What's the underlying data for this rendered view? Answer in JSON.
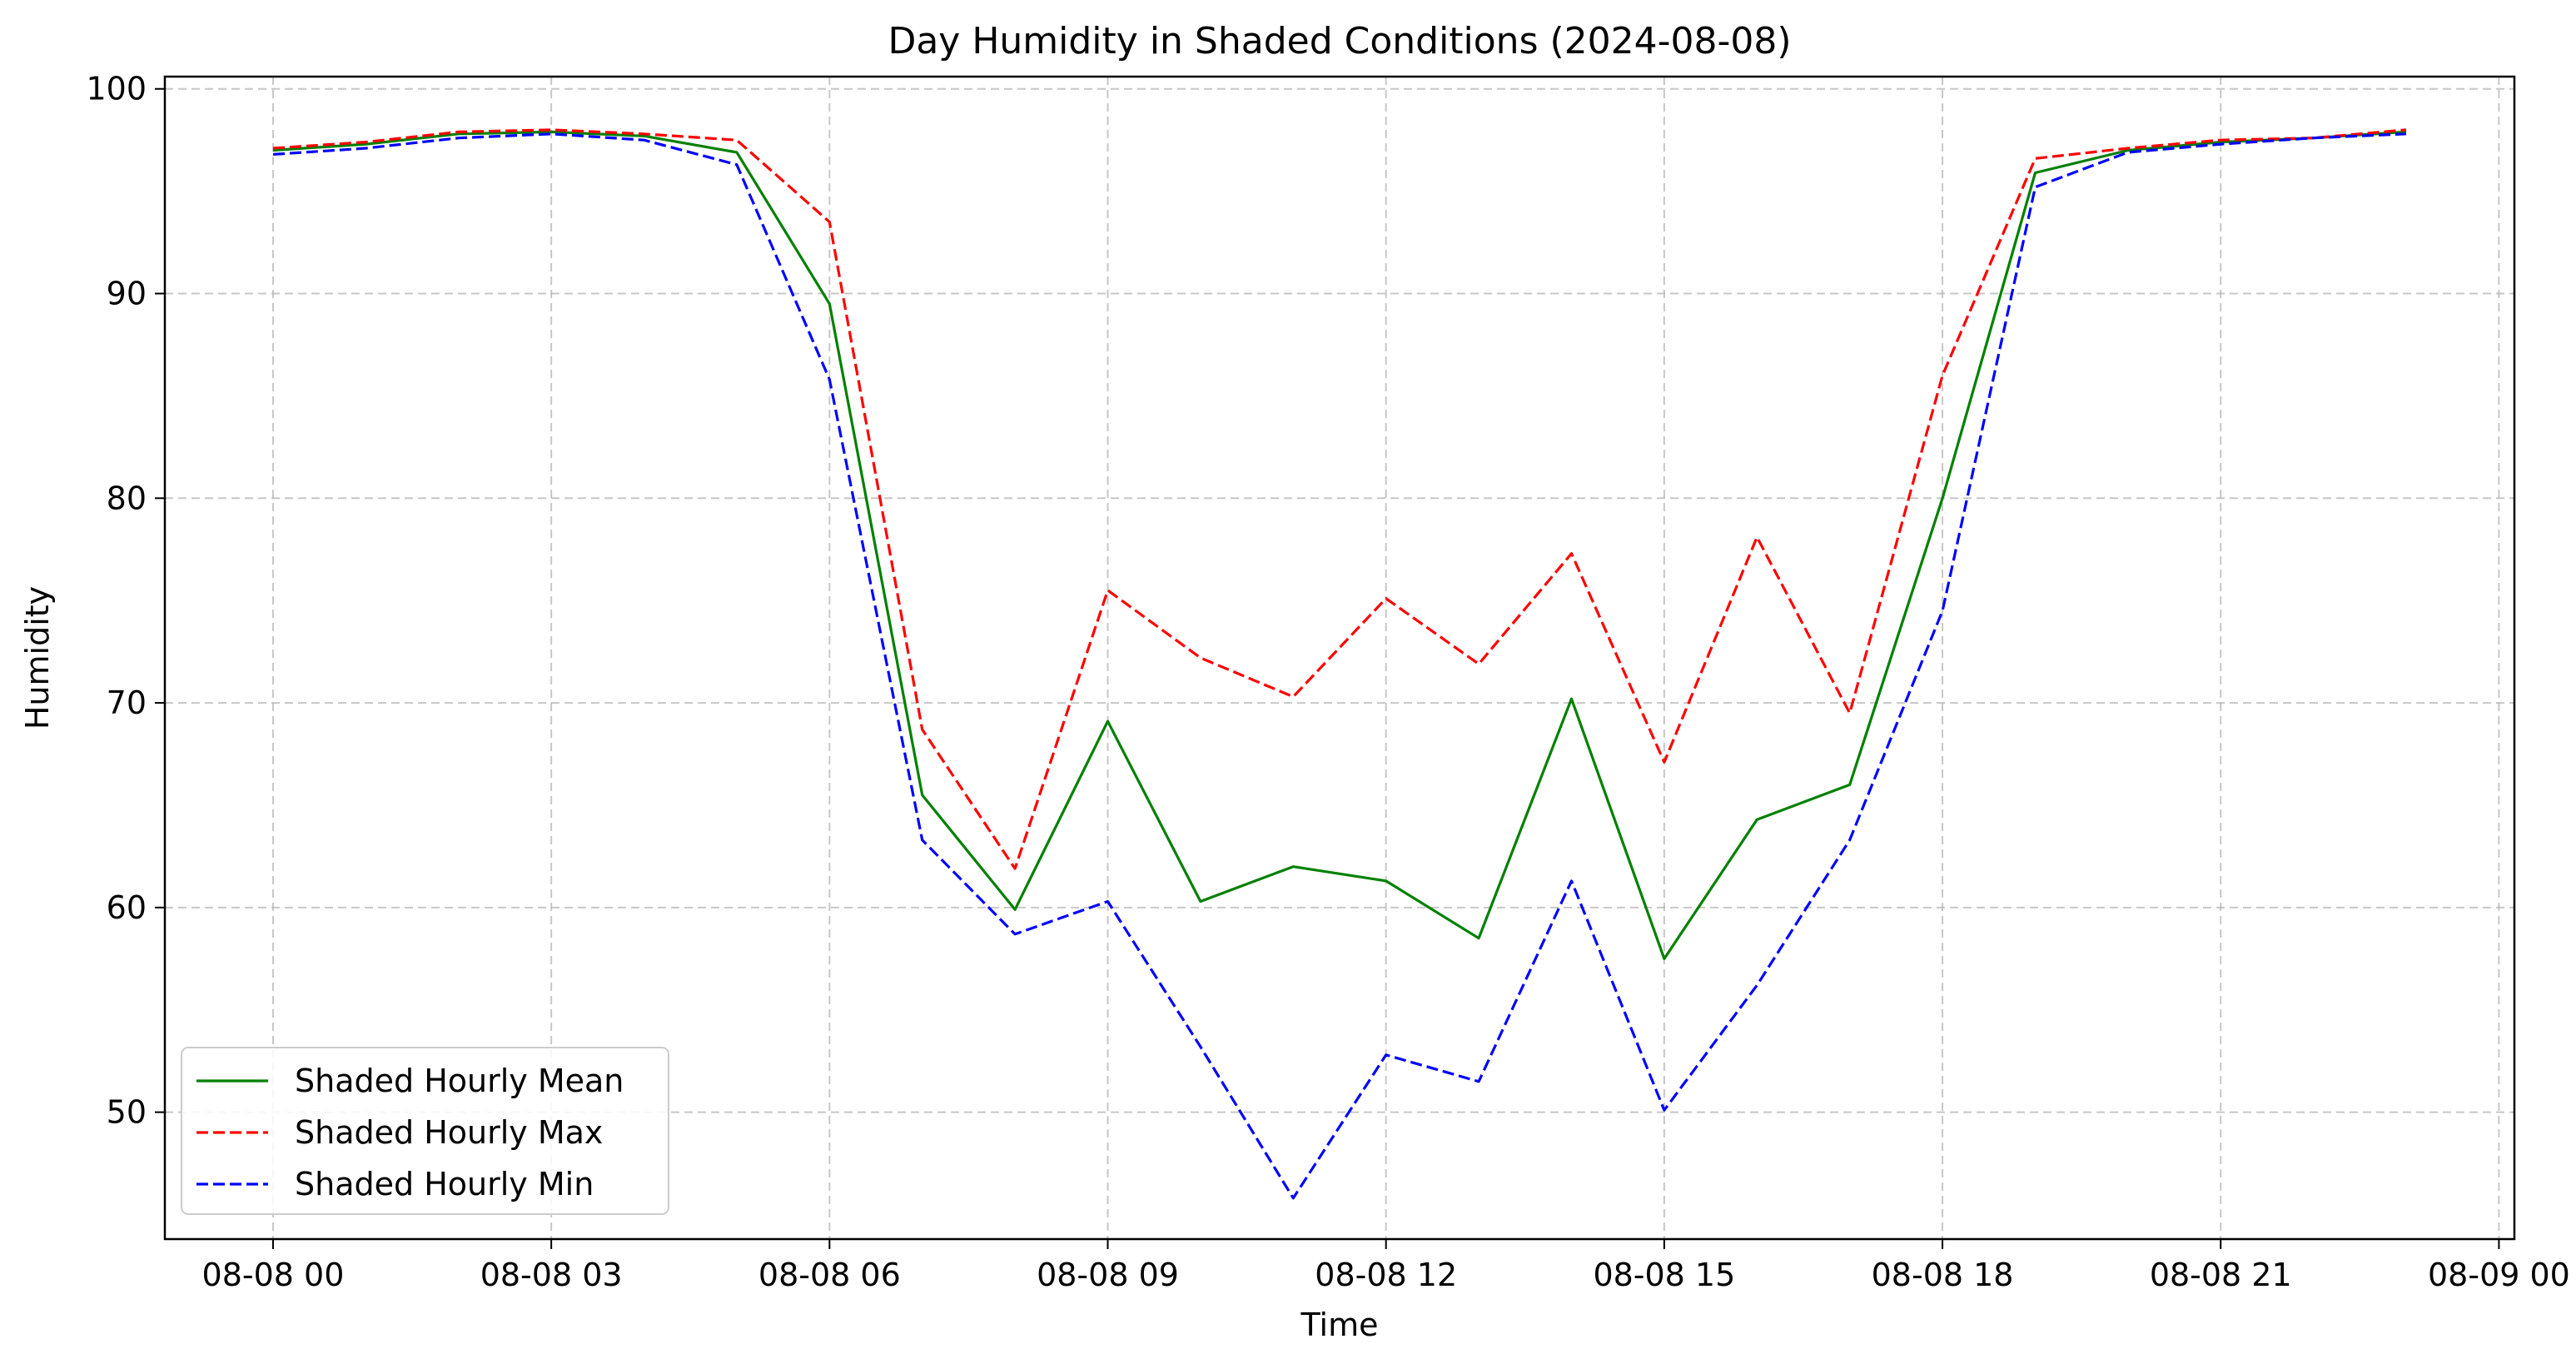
{
  "chart_data": {
    "type": "line",
    "title": "Day Humidity in Shaded Conditions (2024-08-08)",
    "xlabel": "Time",
    "ylabel": "Humidity",
    "x": [
      "2024-08-08 00:00",
      "2024-08-08 01:00",
      "2024-08-08 02:00",
      "2024-08-08 03:00",
      "2024-08-08 04:00",
      "2024-08-08 05:00",
      "2024-08-08 06:00",
      "2024-08-08 07:00",
      "2024-08-08 08:00",
      "2024-08-08 09:00",
      "2024-08-08 10:00",
      "2024-08-08 11:00",
      "2024-08-08 12:00",
      "2024-08-08 13:00",
      "2024-08-08 14:00",
      "2024-08-08 15:00",
      "2024-08-08 16:00",
      "2024-08-08 17:00",
      "2024-08-08 18:00",
      "2024-08-08 19:00",
      "2024-08-08 20:00",
      "2024-08-08 21:00",
      "2024-08-08 22:00",
      "2024-08-08 23:00"
    ],
    "xlim": [
      "2024-08-07 22:50",
      "2024-08-09 00:10"
    ],
    "ylim": [
      43.8,
      100.6
    ],
    "x_ticks": [
      {
        "value": "2024-08-08 00:00",
        "label": "08-08 00"
      },
      {
        "value": "2024-08-08 03:00",
        "label": "08-08 03"
      },
      {
        "value": "2024-08-08 06:00",
        "label": "08-08 06"
      },
      {
        "value": "2024-08-08 09:00",
        "label": "08-08 09"
      },
      {
        "value": "2024-08-08 12:00",
        "label": "08-08 12"
      },
      {
        "value": "2024-08-08 15:00",
        "label": "08-08 15"
      },
      {
        "value": "2024-08-08 18:00",
        "label": "08-08 18"
      },
      {
        "value": "2024-08-08 21:00",
        "label": "08-08 21"
      },
      {
        "value": "2024-08-09 00:00",
        "label": "08-09 00"
      }
    ],
    "y_ticks": [
      {
        "value": 50,
        "label": "50"
      },
      {
        "value": 60,
        "label": "60"
      },
      {
        "value": 70,
        "label": "70"
      },
      {
        "value": 80,
        "label": "80"
      },
      {
        "value": 90,
        "label": "90"
      },
      {
        "value": 100,
        "label": "100"
      }
    ],
    "grid": true,
    "legend_position": "lower-left",
    "series": [
      {
        "name": "Shaded Hourly Mean",
        "color": "#008000",
        "dash": "solid",
        "values": [
          97.0,
          97.3,
          97.8,
          97.9,
          97.7,
          96.9,
          89.5,
          65.5,
          59.9,
          69.1,
          60.3,
          62.0,
          61.3,
          58.5,
          70.2,
          57.5,
          64.3,
          66.0,
          80.0,
          95.9,
          97.0,
          97.4,
          97.6,
          97.9
        ]
      },
      {
        "name": "Shaded Hourly Max",
        "color": "#ff0000",
        "dash": "dashed",
        "values": [
          97.1,
          97.4,
          97.9,
          98.0,
          97.8,
          97.5,
          93.5,
          68.7,
          61.9,
          75.5,
          72.2,
          70.3,
          75.1,
          71.9,
          77.3,
          67.1,
          78.1,
          69.5,
          86.0,
          96.6,
          97.1,
          97.5,
          97.6,
          98.0
        ]
      },
      {
        "name": "Shaded Hourly Min",
        "color": "#0000ff",
        "dash": "dashed",
        "values": [
          96.8,
          97.1,
          97.6,
          97.8,
          97.5,
          96.3,
          85.8,
          63.3,
          58.7,
          60.3,
          53.2,
          45.8,
          52.8,
          51.5,
          61.3,
          50.1,
          56.2,
          63.3,
          74.5,
          95.2,
          96.9,
          97.3,
          97.6,
          97.8
        ]
      }
    ]
  }
}
